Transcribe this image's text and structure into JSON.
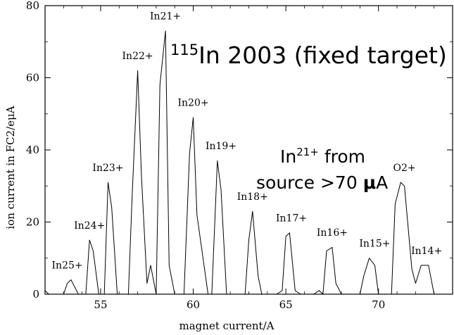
{
  "chart_data": {
    "type": "line",
    "title_iso": "115",
    "title": "In 2003 (fixed target)",
    "xlabel": "magnet current/A",
    "ylabel": "ion current in FC2/eμA",
    "xlim": [
      52,
      74
    ],
    "ylim": [
      0,
      80
    ],
    "xticks": [
      55,
      60,
      65,
      70
    ],
    "yticks": [
      0,
      20,
      40,
      60,
      80
    ],
    "grid": false,
    "line_color": "#000000",
    "series": [
      {
        "x": [
          52,
          52.2,
          52.5,
          52.8,
          53.0,
          53.2,
          53.4,
          53.8,
          54.0,
          54.2,
          54.4,
          54.6,
          54.9,
          55.0,
          55.2,
          55.4,
          55.6,
          55.9,
          56.0,
          56.5,
          56.7,
          57.0,
          57.2,
          57.5,
          57.7,
          58.0,
          58.2,
          58.5,
          58.7,
          59.0,
          59.5,
          59.8,
          60.0,
          60.2,
          60.8,
          61.0,
          61.3,
          61.5,
          61.8,
          62.0,
          62.8,
          63.0,
          63.2,
          63.5,
          63.7,
          64.0,
          64.5,
          64.8,
          65.0,
          65.2,
          65.5,
          65.8,
          66.0,
          66.5,
          66.8,
          67.0,
          67.2,
          67.5,
          67.7,
          68.0,
          68.5,
          68.7,
          69.0,
          69.2,
          69.5,
          69.8,
          70.0,
          70.3,
          70.7,
          70.9,
          71.2,
          71.4,
          71.8,
          72.0,
          72.3,
          72.7,
          73.0
        ],
        "y": [
          1,
          0,
          0,
          0,
          0,
          3,
          4,
          0,
          0,
          0,
          15,
          12,
          0,
          0,
          0,
          31,
          24,
          0,
          0,
          0,
          27,
          62,
          33,
          3,
          8,
          0,
          58,
          73,
          8,
          0,
          0,
          39,
          49,
          22,
          0,
          0,
          37,
          29,
          0,
          0,
          0,
          15,
          23,
          5,
          0,
          0,
          0,
          1,
          16,
          17,
          1,
          0,
          0,
          0,
          1,
          0,
          12,
          13,
          3,
          0,
          0,
          0,
          0,
          5,
          10,
          8,
          0,
          0,
          0,
          25,
          31,
          30,
          7,
          3,
          8,
          8,
          0
        ]
      }
    ],
    "peak_labels": [
      {
        "text": "In25+",
        "x": 53.2,
        "y": 6
      },
      {
        "text": "In24+",
        "x": 54.4,
        "y": 17
      },
      {
        "text": "In23+",
        "x": 55.4,
        "y": 33
      },
      {
        "text": "In22+",
        "x": 57.0,
        "y": 64
      },
      {
        "text": "In21+",
        "x": 58.5,
        "y": 75
      },
      {
        "text": "In20+",
        "x": 60.0,
        "y": 51
      },
      {
        "text": "In19+",
        "x": 61.5,
        "y": 39
      },
      {
        "text": "In18+",
        "x": 63.2,
        "y": 25
      },
      {
        "text": "In17+",
        "x": 65.3,
        "y": 19
      },
      {
        "text": "In16+",
        "x": 67.5,
        "y": 15
      },
      {
        "text": "In15+",
        "x": 69.8,
        "y": 12
      },
      {
        "text": "O2+",
        "x": 71.4,
        "y": 33
      },
      {
        "text": "In14+",
        "x": 72.6,
        "y": 10
      }
    ],
    "annotation": {
      "line1_pre": "In",
      "line1_sup": "21+",
      "line1_post": " from",
      "line2_pre": "source >70 ",
      "line2_bold": "μ",
      "line2_post": "A"
    }
  }
}
